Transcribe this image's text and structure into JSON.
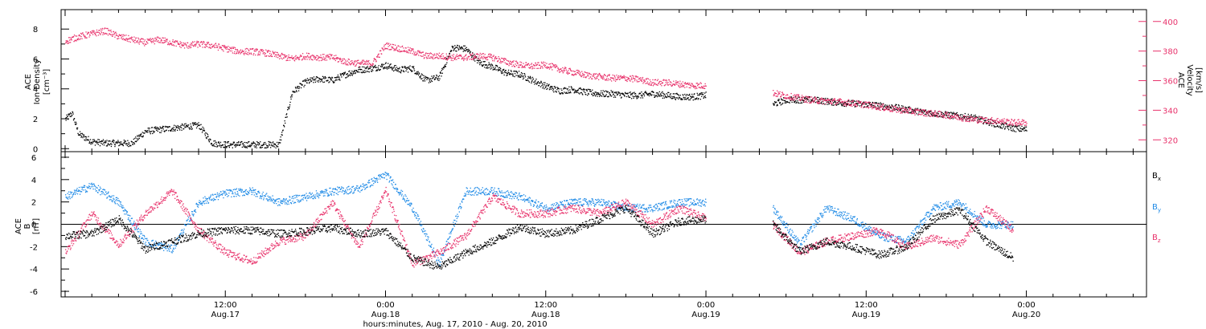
{
  "chart_data": [
    {
      "type": "scatter",
      "panel": "top",
      "left_axis_label": [
        "ACE",
        "Ion Density",
        "[cm⁻³]"
      ],
      "right_axis_label": [
        "ACE",
        "Velocity",
        "[km/s]"
      ],
      "left_yticks": [
        "0",
        "2",
        "4",
        "6",
        "8"
      ],
      "right_yticks": [
        "320",
        "340",
        "360",
        "380",
        "400"
      ],
      "left_ylim": [
        -0.2,
        9.3
      ],
      "right_ylim": [
        312,
        408
      ],
      "series": [
        {
          "name": "",
          "axis": "left",
          "color": "#000000",
          "x_hours": [
            0.0,
            0.5,
            1.0,
            2.0,
            3.0,
            4.0,
            5.0,
            6.0,
            7.0,
            8.0,
            9.0,
            10.0,
            11.0,
            12.0,
            13.0,
            14.0,
            15.0,
            16.0,
            17.0,
            18.0,
            19.0,
            20.0,
            21.0,
            22.0,
            23.0,
            24.0,
            25.0,
            26.0,
            27.0,
            28.0,
            29.0,
            30.0,
            31.0,
            32.0,
            33.0,
            34.0,
            35.0,
            36.0,
            37.0,
            38.0,
            39.0,
            40.0,
            41.0,
            42.0,
            43.0,
            44.0,
            45.0,
            46.0,
            47.0,
            48.0,
            53.0,
            54.0,
            56.0,
            58.0,
            60.0,
            62.0,
            64.0,
            66.0,
            68.0,
            70.0,
            71.0,
            72.0
          ],
          "values": [
            2.0,
            2.4,
            1.0,
            0.5,
            0.4,
            0.4,
            0.4,
            1.2,
            1.3,
            1.4,
            1.5,
            1.6,
            0.4,
            0.3,
            0.3,
            0.3,
            0.3,
            0.3,
            3.8,
            4.5,
            4.7,
            4.6,
            5.0,
            5.3,
            5.4,
            5.6,
            5.3,
            5.4,
            4.6,
            4.8,
            6.8,
            6.7,
            5.8,
            5.5,
            5.1,
            5.0,
            4.6,
            4.2,
            3.9,
            4.0,
            3.8,
            3.7,
            3.7,
            3.6,
            3.6,
            3.7,
            3.6,
            3.5,
            3.5,
            3.6,
            3.0,
            3.3,
            3.3,
            3.1,
            3.0,
            2.8,
            2.5,
            2.3,
            2.1,
            1.6,
            1.4,
            1.3
          ]
        },
        {
          "name": "",
          "axis": "right",
          "color": "#e8336c",
          "x_hours": [
            0.0,
            1.0,
            2.0,
            3.0,
            4.0,
            5.0,
            6.0,
            7.0,
            8.0,
            9.0,
            10.0,
            11.0,
            12.0,
            13.0,
            14.0,
            15.0,
            16.0,
            17.0,
            18.0,
            19.0,
            20.0,
            21.0,
            22.0,
            23.0,
            24.0,
            25.0,
            26.0,
            27.0,
            28.0,
            29.0,
            30.0,
            31.0,
            32.0,
            33.0,
            34.0,
            35.0,
            36.0,
            37.0,
            38.0,
            39.0,
            40.0,
            41.0,
            42.0,
            43.0,
            44.0,
            45.0,
            46.0,
            47.0,
            48.0,
            53.0,
            54.0,
            56.0,
            58.0,
            60.0,
            62.0,
            64.0,
            66.0,
            68.0,
            70.0,
            71.0,
            72.0
          ],
          "values": [
            387,
            390,
            392,
            394,
            390,
            388,
            386,
            388,
            386,
            384,
            385,
            384,
            382,
            380,
            380,
            379,
            377,
            375,
            377,
            376,
            376,
            373,
            372,
            372,
            384,
            382,
            380,
            377,
            377,
            376,
            376,
            377,
            376,
            373,
            371,
            370,
            371,
            368,
            366,
            364,
            363,
            362,
            362,
            361,
            359,
            359,
            358,
            357,
            357,
            352,
            350,
            347,
            346,
            344,
            341,
            339,
            337,
            334,
            333,
            332,
            332
          ]
        }
      ]
    },
    {
      "type": "scatter",
      "panel": "bottom",
      "left_axis_label": [
        "ACE",
        "B",
        "[nT]"
      ],
      "left_yticks": [
        "-6",
        "-4",
        "-2",
        "0",
        "2",
        "4",
        "6"
      ],
      "left_ylim": [
        -6.5,
        6.5
      ],
      "legend": [
        "B",
        "B",
        "B"
      ],
      "legend_subscripts": [
        "x",
        "y",
        "z"
      ],
      "series": [
        {
          "name": "Bx",
          "color": "#000000",
          "x_hours": [
            0,
            2,
            4,
            6,
            8,
            10,
            12,
            14,
            16,
            18,
            20,
            22,
            24,
            26,
            28,
            30,
            32,
            34,
            36,
            38,
            40,
            42,
            44,
            46,
            48,
            53,
            55,
            57,
            59,
            61,
            63,
            65,
            67,
            69,
            71
          ],
          "values": [
            -1.0,
            -0.8,
            0.5,
            -2.2,
            -1.5,
            -0.8,
            -0.5,
            -0.5,
            -0.8,
            -0.6,
            -0.3,
            -0.8,
            -0.6,
            -3.0,
            -3.8,
            -2.5,
            -1.5,
            -0.2,
            -0.8,
            -0.5,
            0.5,
            1.5,
            -0.8,
            0.3,
            0.5,
            0.0,
            -2.4,
            -1.5,
            -2.0,
            -2.7,
            -2.0,
            0.5,
            1.3,
            -1.5,
            -3.0
          ]
        },
        {
          "name": "By",
          "color": "#1f8ae6",
          "x_hours": [
            0,
            2,
            4,
            6,
            8,
            10,
            12,
            14,
            16,
            18,
            20,
            22,
            24,
            26,
            28,
            30,
            32,
            34,
            36,
            38,
            40,
            42,
            44,
            46,
            48,
            53,
            55,
            57,
            59,
            61,
            63,
            65,
            67,
            69,
            71
          ],
          "values": [
            2.5,
            3.5,
            2.0,
            -1.5,
            -2.2,
            2.0,
            2.8,
            3.0,
            2.0,
            2.5,
            3.0,
            3.2,
            4.5,
            1.5,
            -3.5,
            3.0,
            3.0,
            2.5,
            1.5,
            2.0,
            2.0,
            1.5,
            1.5,
            2.0,
            2.0,
            1.5,
            -1.8,
            1.5,
            0.5,
            -1.0,
            -1.5,
            1.5,
            2.0,
            0.0,
            0.0
          ]
        },
        {
          "name": "Bz",
          "color": "#e8336c",
          "x_hours": [
            0,
            2,
            4,
            6,
            8,
            10,
            12,
            14,
            16,
            18,
            20,
            22,
            24,
            26,
            28,
            30,
            32,
            34,
            36,
            38,
            40,
            42,
            44,
            46,
            48,
            53,
            55,
            57,
            59,
            61,
            63,
            65,
            67,
            69,
            71
          ],
          "values": [
            -2.5,
            1.0,
            -1.8,
            1.0,
            3.0,
            -0.5,
            -2.5,
            -3.3,
            -1.5,
            -1.0,
            2.0,
            -2.0,
            3.0,
            -3.5,
            -2.5,
            -1.0,
            2.5,
            1.0,
            1.0,
            1.5,
            1.0,
            2.0,
            0.0,
            1.5,
            0.5,
            0.0,
            -2.5,
            -1.5,
            -1.0,
            -0.5,
            -2.0,
            -1.2,
            -1.8,
            1.5,
            -0.5
          ]
        }
      ]
    }
  ],
  "x_axis": {
    "tick_labels": [
      {
        "time": "12:00",
        "date": "Aug.17",
        "hours": 12
      },
      {
        "time": "0:00",
        "date": "Aug.18",
        "hours": 24
      },
      {
        "time": "12:00",
        "date": "Aug.18",
        "hours": 36
      },
      {
        "time": "0:00",
        "date": "Aug.19",
        "hours": 48
      },
      {
        "time": "12:00",
        "date": "Aug.19",
        "hours": 60
      },
      {
        "time": "0:00",
        "date": "Aug.20",
        "hours": 72
      }
    ],
    "xlim_hours": [
      -0.3,
      81.0
    ],
    "title": "hours:minutes, Aug. 17, 2010 - Aug. 20, 2010"
  },
  "colors": {
    "black": "#000000",
    "pink": "#e8336c",
    "blue": "#1f8ae6"
  }
}
